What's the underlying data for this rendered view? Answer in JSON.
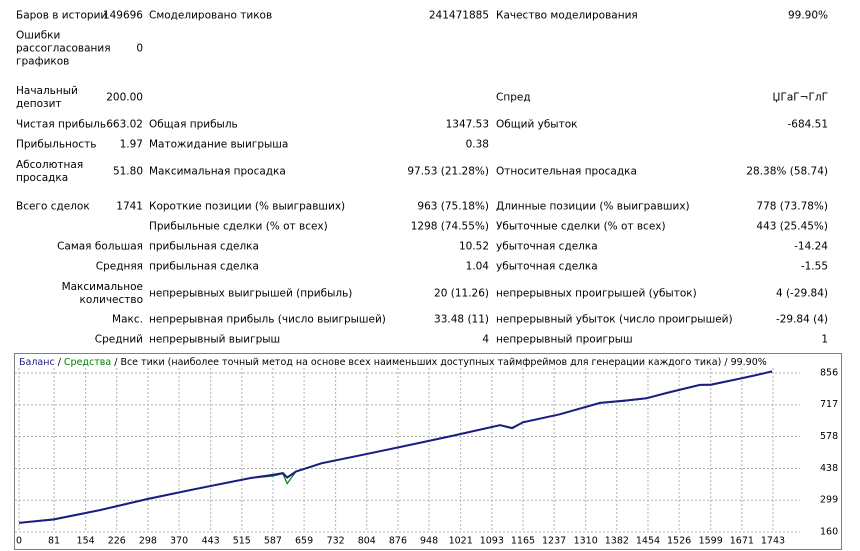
{
  "report": {
    "rows": [
      [
        "Баров в истории",
        "149696",
        "Смоделировано тиков",
        "241471885",
        "Качество моделирования",
        "99.90%"
      ],
      [
        "Ошибки рассогласования графиков",
        "0",
        null,
        null,
        null,
        null
      ],
      [
        "Начальный депозит",
        "200.00",
        null,
        null,
        "Спред",
        "ЏГаГ¬ГлГ"
      ],
      [
        "Чистая прибыль",
        "663.02",
        "Общая прибыль",
        "1347.53",
        "Общий убыток",
        "-684.51"
      ],
      [
        "Прибыльность",
        "1.97",
        "Матожидание выигрыша",
        "0.38",
        null,
        null
      ],
      [
        "Абсолютная просадка",
        "51.80",
        "Максимальная просадка",
        "97.53 (21.28%)",
        "Относительная просадка",
        "28.38% (58.74)"
      ],
      [
        "Всего сделок",
        "1741",
        "Короткие позиции (% выигравших)",
        "963 (75.18%)",
        "Длинные позиции (% выигравших)",
        "778 (73.78%)"
      ],
      [
        null,
        null,
        "Прибыльные сделки (% от всех)",
        "1298 (74.55%)",
        "Убыточные сделки (% от всех)",
        "443 (25.45%)"
      ],
      [
        null,
        "Самая большая",
        "прибыльная сделка",
        "10.52",
        "убыточная сделка",
        "-14.24"
      ],
      [
        null,
        "Средняя",
        "прибыльная сделка",
        "1.04",
        "убыточная сделка",
        "-1.55"
      ],
      [
        null,
        "Максимальное количество",
        "непрерывных выигрышей (прибыль)",
        "20 (11.26)",
        "непрерывных проигрышей (убыток)",
        "4 (-29.84)"
      ],
      [
        null,
        "Макс.",
        "непрерывная прибыль (число выигрышей)",
        "33.48 (11)",
        "непрерывный убыток (число проигрышей)",
        "-29.84 (4)"
      ],
      [
        null,
        "Средний",
        "непрерывный выигрыш",
        "4",
        "непрерывный проигрыш",
        "1"
      ]
    ]
  },
  "chart_data": {
    "type": "line",
    "title": "Все тики (наиболее точный метод на основе всех наименьших доступных таймфреймов для генерации каждого тика)",
    "modeling_quality": "99.90%",
    "x": [
      0,
      80,
      187,
      298,
      400,
      534,
      587,
      610,
      620,
      640,
      700,
      800,
      881,
      1000,
      1112,
      1140,
      1165,
      1250,
      1343,
      1400,
      1450,
      1500,
      1574,
      1600,
      1650,
      1700,
      1741
    ],
    "series": [
      {
        "name": "Баланс",
        "color": "#1c1c82",
        "values": [
          200,
          215,
          256,
          305,
          345,
          396,
          410,
          418,
          398,
          425,
          461,
          500,
          532,
          580,
          628,
          615,
          640,
          675,
          725,
          735,
          745,
          770,
          804,
          805,
          825,
          845,
          863
        ]
      },
      {
        "name": "Средства",
        "color": "#008000",
        "values": [
          200,
          213,
          255,
          303,
          344,
          395,
          405,
          415,
          372,
          424,
          460,
          499,
          531,
          579,
          627,
          612,
          639,
          674,
          724,
          733,
          744,
          769,
          803,
          803,
          824,
          844,
          863
        ]
      }
    ],
    "xlim": [
      0,
      1780
    ],
    "xticks": [
      0,
      81,
      154,
      226,
      298,
      370,
      443,
      515,
      587,
      659,
      732,
      804,
      876,
      948,
      1021,
      1093,
      1165,
      1237,
      1310,
      1382,
      1454,
      1526,
      1599,
      1671,
      1743
    ],
    "ylim": [
      160,
      880
    ],
    "yticks": [
      160,
      299,
      438,
      578,
      717,
      856
    ],
    "grid": true
  }
}
